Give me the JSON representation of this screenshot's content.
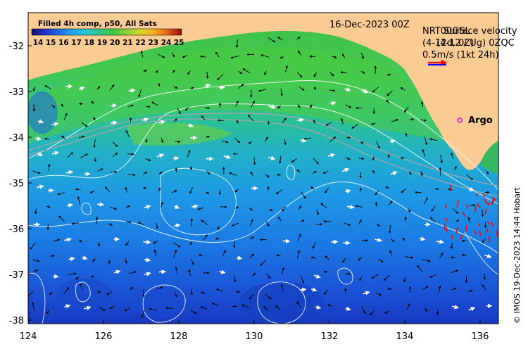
{
  "map": {
    "date_label": "16-Dec-2023 00Z",
    "legend_title": "Filled 4h comp, p50, All Sats",
    "colorbar_ticks": [
      "14",
      "15",
      "16",
      "17",
      "18",
      "19",
      "20",
      "21",
      "22",
      "23",
      "24",
      "25"
    ],
    "colorbar_colors": [
      "#1a1a8c",
      "#1f3fd0",
      "#1f77e8",
      "#22a8f0",
      "#28c8d8",
      "#2ec89a",
      "#3cc84e",
      "#7cd03a",
      "#c8d830",
      "#f0c020",
      "#f07818",
      "#d01818",
      "#901010"
    ],
    "velocity_title_line1": "NRT00GSL",
    "velocity_title_line2": "(4-12d, 0Z)",
    "velocity_overlap_line1": "Surface velocity",
    "velocity_overlap_line2": "(4-12 / Ug) 0ZQC",
    "velocity_scale_text": "0.5m/s (1kt 24h)",
    "argo_label": "Argo",
    "credit": "© IMOS 19-Dec-2023 14:44 Hobart",
    "x_ticks": [
      "124",
      "126",
      "128",
      "130",
      "132",
      "134",
      "136"
    ],
    "y_ticks": [
      "-32",
      "-33",
      "-34",
      "-35",
      "-36",
      "-37",
      "-38"
    ],
    "colors": {
      "land": "#fbcb94",
      "arrow_black": "#000000",
      "arrow_white": "#ffffff",
      "argo": "#e020e0",
      "red_vectors": "#ff0000",
      "scale_arrow_red": "#ff0000",
      "scale_arrow_blue": "#0000ff"
    }
  }
}
